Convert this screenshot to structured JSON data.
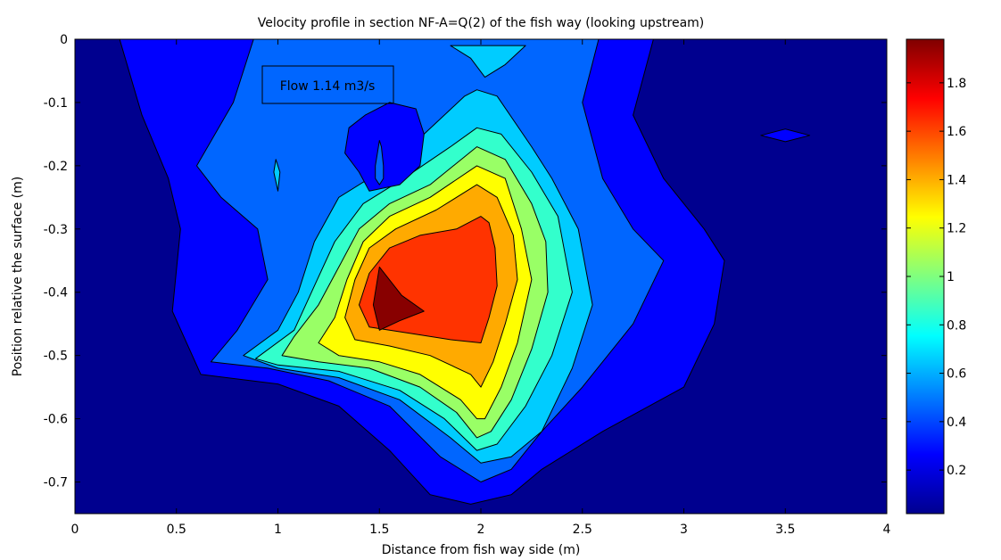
{
  "chart_data": {
    "type": "heatmap",
    "subtype": "filled-contour",
    "title": "Velocity profile in section NF-A=Q(2) of the fish way (looking upstream)",
    "xlabel": "Distance from fish way side (m)",
    "ylabel": "Position relative the surface (m)",
    "xlim": [
      0,
      4
    ],
    "ylim": [
      -0.75,
      0
    ],
    "x_ticks": [
      0,
      0.5,
      1,
      1.5,
      2,
      2.5,
      3,
      3.5,
      4
    ],
    "x_tick_labels": [
      "0",
      "0.5",
      "1",
      "1.5",
      "2",
      "2.5",
      "3",
      "3.5",
      "4"
    ],
    "y_ticks": [
      0,
      -0.1,
      -0.2,
      -0.3,
      -0.4,
      -0.5,
      -0.6,
      -0.7
    ],
    "y_tick_labels": [
      "0",
      "-0.1",
      "-0.2",
      "-0.3",
      "-0.4",
      "-0.5",
      "-0.6",
      "-0.7"
    ],
    "annotation": "Flow 1.14 m3/s",
    "colormap": "jet",
    "colorbar": {
      "range": [
        0.02,
        1.98
      ],
      "ticks": [
        0.2,
        0.4,
        0.6,
        0.8,
        1,
        1.2,
        1.4,
        1.6,
        1.8
      ],
      "tick_labels": [
        "0.2",
        "0.4",
        "0.6",
        "0.8",
        "1",
        "1.2",
        "1.4",
        "1.6",
        "1.8"
      ]
    },
    "contour_levels": [
      {
        "level": 0.2,
        "color": "#0000ff",
        "polygons": [
          [
            [
              0.22,
              0
            ],
            [
              2.85,
              0
            ],
            [
              2.75,
              -0.12
            ],
            [
              2.9,
              -0.22
            ],
            [
              3.1,
              -0.3
            ],
            [
              3.2,
              -0.35
            ],
            [
              3.15,
              -0.45
            ],
            [
              3.0,
              -0.55
            ],
            [
              2.6,
              -0.62
            ],
            [
              2.3,
              -0.68
            ],
            [
              2.15,
              -0.72
            ],
            [
              1.95,
              -0.735
            ],
            [
              1.75,
              -0.72
            ],
            [
              1.55,
              -0.65
            ],
            [
              1.3,
              -0.58
            ],
            [
              1.0,
              -0.545
            ],
            [
              0.62,
              -0.53
            ],
            [
              0.48,
              -0.43
            ],
            [
              0.52,
              -0.3
            ],
            [
              0.46,
              -0.22
            ],
            [
              0.33,
              -0.12
            ]
          ],
          [
            [
              3.38,
              -0.152
            ],
            [
              3.5,
              -0.142
            ],
            [
              3.62,
              -0.152
            ],
            [
              3.5,
              -0.162
            ]
          ]
        ]
      },
      {
        "level": 0.4,
        "color": "#0066ff",
        "polygons": [
          [
            [
              0.88,
              0
            ],
            [
              2.58,
              0
            ],
            [
              2.5,
              -0.1
            ],
            [
              2.6,
              -0.22
            ],
            [
              2.75,
              -0.3
            ],
            [
              2.9,
              -0.35
            ],
            [
              2.75,
              -0.45
            ],
            [
              2.5,
              -0.55
            ],
            [
              2.3,
              -0.62
            ],
            [
              2.15,
              -0.68
            ],
            [
              2.0,
              -0.7
            ],
            [
              1.8,
              -0.66
            ],
            [
              1.55,
              -0.58
            ],
            [
              1.25,
              -0.54
            ],
            [
              0.95,
              -0.52
            ],
            [
              0.67,
              -0.51
            ],
            [
              0.8,
              -0.46
            ],
            [
              0.95,
              -0.38
            ],
            [
              0.9,
              -0.3
            ],
            [
              0.72,
              -0.25
            ],
            [
              0.6,
              -0.2
            ],
            [
              0.78,
              -0.1
            ]
          ]
        ]
      },
      {
        "level": 0.6,
        "color": "#00ccff",
        "polygons": [
          [
            [
              1.85,
              -0.01
            ],
            [
              1.95,
              -0.03
            ],
            [
              2.02,
              -0.06
            ],
            [
              2.12,
              -0.04
            ],
            [
              2.22,
              -0.01
            ]
          ],
          [
            [
              0.99,
              -0.19
            ],
            [
              1.01,
              -0.21
            ],
            [
              1.0,
              -0.24
            ],
            [
              0.98,
              -0.21
            ]
          ],
          [
            [
              1.92,
              -0.09
            ],
            [
              1.98,
              -0.08
            ],
            [
              2.08,
              -0.09
            ],
            [
              2.25,
              -0.17
            ],
            [
              2.35,
              -0.22
            ],
            [
              2.48,
              -0.3
            ],
            [
              2.55,
              -0.42
            ],
            [
              2.45,
              -0.52
            ],
            [
              2.3,
              -0.62
            ],
            [
              2.15,
              -0.66
            ],
            [
              2.0,
              -0.67
            ],
            [
              1.85,
              -0.63
            ],
            [
              1.6,
              -0.57
            ],
            [
              1.3,
              -0.535
            ],
            [
              1.0,
              -0.52
            ],
            [
              0.83,
              -0.5
            ],
            [
              1.0,
              -0.46
            ],
            [
              1.1,
              -0.4
            ],
            [
              1.18,
              -0.32
            ],
            [
              1.3,
              -0.25
            ],
            [
              1.55,
              -0.2
            ],
            [
              1.72,
              -0.15
            ]
          ]
        ]
      },
      {
        "level": 0.8,
        "color": "#33ffcc",
        "polygons": [
          [
            [
              1.98,
              -0.14
            ],
            [
              2.1,
              -0.15
            ],
            [
              2.25,
              -0.21
            ],
            [
              2.38,
              -0.28
            ],
            [
              2.45,
              -0.4
            ],
            [
              2.35,
              -0.5
            ],
            [
              2.22,
              -0.58
            ],
            [
              2.08,
              -0.64
            ],
            [
              1.98,
              -0.65
            ],
            [
              1.82,
              -0.6
            ],
            [
              1.6,
              -0.555
            ],
            [
              1.3,
              -0.525
            ],
            [
              1.0,
              -0.515
            ],
            [
              0.89,
              -0.505
            ],
            [
              1.08,
              -0.46
            ],
            [
              1.18,
              -0.39
            ],
            [
              1.28,
              -0.32
            ],
            [
              1.42,
              -0.26
            ],
            [
              1.62,
              -0.22
            ],
            [
              1.85,
              -0.17
            ]
          ]
        ]
      },
      {
        "level": 1.0,
        "color": "#99ff66",
        "polygons": [
          [
            [
              1.98,
              -0.17
            ],
            [
              2.12,
              -0.19
            ],
            [
              2.25,
              -0.26
            ],
            [
              2.32,
              -0.32
            ],
            [
              2.33,
              -0.4
            ],
            [
              2.25,
              -0.49
            ],
            [
              2.15,
              -0.57
            ],
            [
              2.05,
              -0.62
            ],
            [
              1.98,
              -0.63
            ],
            [
              1.88,
              -0.59
            ],
            [
              1.7,
              -0.55
            ],
            [
              1.45,
              -0.52
            ],
            [
              1.2,
              -0.51
            ],
            [
              1.02,
              -0.5
            ],
            [
              1.08,
              -0.47
            ],
            [
              1.2,
              -0.42
            ],
            [
              1.3,
              -0.36
            ],
            [
              1.4,
              -0.3
            ],
            [
              1.55,
              -0.26
            ],
            [
              1.75,
              -0.23
            ]
          ]
        ]
      },
      {
        "level": 1.2,
        "color": "#ffff00",
        "polygons": [
          [
            [
              1.98,
              -0.2
            ],
            [
              2.12,
              -0.22
            ],
            [
              2.2,
              -0.3
            ],
            [
              2.25,
              -0.38
            ],
            [
              2.18,
              -0.48
            ],
            [
              2.1,
              -0.55
            ],
            [
              2.02,
              -0.6
            ],
            [
              1.98,
              -0.6
            ],
            [
              1.9,
              -0.57
            ],
            [
              1.7,
              -0.53
            ],
            [
              1.5,
              -0.51
            ],
            [
              1.3,
              -0.5
            ],
            [
              1.2,
              -0.48
            ],
            [
              1.28,
              -0.44
            ],
            [
              1.34,
              -0.38
            ],
            [
              1.42,
              -0.32
            ],
            [
              1.55,
              -0.28
            ],
            [
              1.75,
              -0.25
            ]
          ]
        ]
      },
      {
        "level": 1.4,
        "color": "#ffaa00",
        "polygons": [
          [
            [
              1.98,
              -0.23
            ],
            [
              2.08,
              -0.25
            ],
            [
              2.16,
              -0.31
            ],
            [
              2.18,
              -0.38
            ],
            [
              2.12,
              -0.45
            ],
            [
              2.06,
              -0.51
            ],
            [
              2.0,
              -0.55
            ],
            [
              1.95,
              -0.53
            ],
            [
              1.75,
              -0.5
            ],
            [
              1.55,
              -0.485
            ],
            [
              1.38,
              -0.475
            ],
            [
              1.33,
              -0.44
            ],
            [
              1.38,
              -0.38
            ],
            [
              1.45,
              -0.33
            ],
            [
              1.58,
              -0.3
            ],
            [
              1.78,
              -0.27
            ]
          ]
        ]
      },
      {
        "level": 1.6,
        "color": "#ff3300",
        "polygons": [
          [
            [
              2.0,
              -0.28
            ],
            [
              2.04,
              -0.29
            ],
            [
              2.07,
              -0.33
            ],
            [
              2.08,
              -0.39
            ],
            [
              2.04,
              -0.44
            ],
            [
              2.0,
              -0.48
            ],
            [
              1.85,
              -0.475
            ],
            [
              1.65,
              -0.465
            ],
            [
              1.45,
              -0.455
            ],
            [
              1.4,
              -0.42
            ],
            [
              1.45,
              -0.37
            ],
            [
              1.55,
              -0.33
            ],
            [
              1.7,
              -0.31
            ],
            [
              1.88,
              -0.3
            ]
          ]
        ]
      },
      {
        "level": 1.8,
        "color": "#880000",
        "polygons": [
          [
            [
              1.5,
              -0.36
            ],
            [
              1.61,
              -0.405
            ],
            [
              1.72,
              -0.43
            ],
            [
              1.6,
              -0.445
            ],
            [
              1.5,
              -0.46
            ],
            [
              1.47,
              -0.42
            ]
          ]
        ]
      }
    ],
    "low_regions": [
      {
        "level": 0.4,
        "color": "#0000ff",
        "polygons": [
          [
            [
              1.45,
              -0.15
            ],
            [
              1.5,
              -0.14
            ],
            [
              1.54,
              -0.17
            ],
            [
              1.52,
              -0.22
            ],
            [
              1.48,
              -0.23
            ],
            [
              1.45,
              -0.2
            ]
          ],
          [
            [
              1.35,
              -0.14
            ],
            [
              1.43,
              -0.12
            ],
            [
              1.55,
              -0.1
            ],
            [
              1.68,
              -0.11
            ],
            [
              1.72,
              -0.15
            ],
            [
              1.7,
              -0.2
            ],
            [
              1.6,
              -0.23
            ],
            [
              1.45,
              -0.24
            ],
            [
              1.4,
              -0.21
            ],
            [
              1.33,
              -0.18
            ]
          ]
        ]
      },
      {
        "level": 0.2,
        "color": "#0066ff",
        "polygons": [
          [
            [
              1.5,
              -0.16
            ],
            [
              1.51,
              -0.17
            ],
            [
              1.52,
              -0.2
            ],
            [
              1.52,
              -0.22
            ],
            [
              1.5,
              -0.23
            ],
            [
              1.48,
              -0.22
            ],
            [
              1.48,
              -0.2
            ]
          ]
        ]
      }
    ]
  }
}
